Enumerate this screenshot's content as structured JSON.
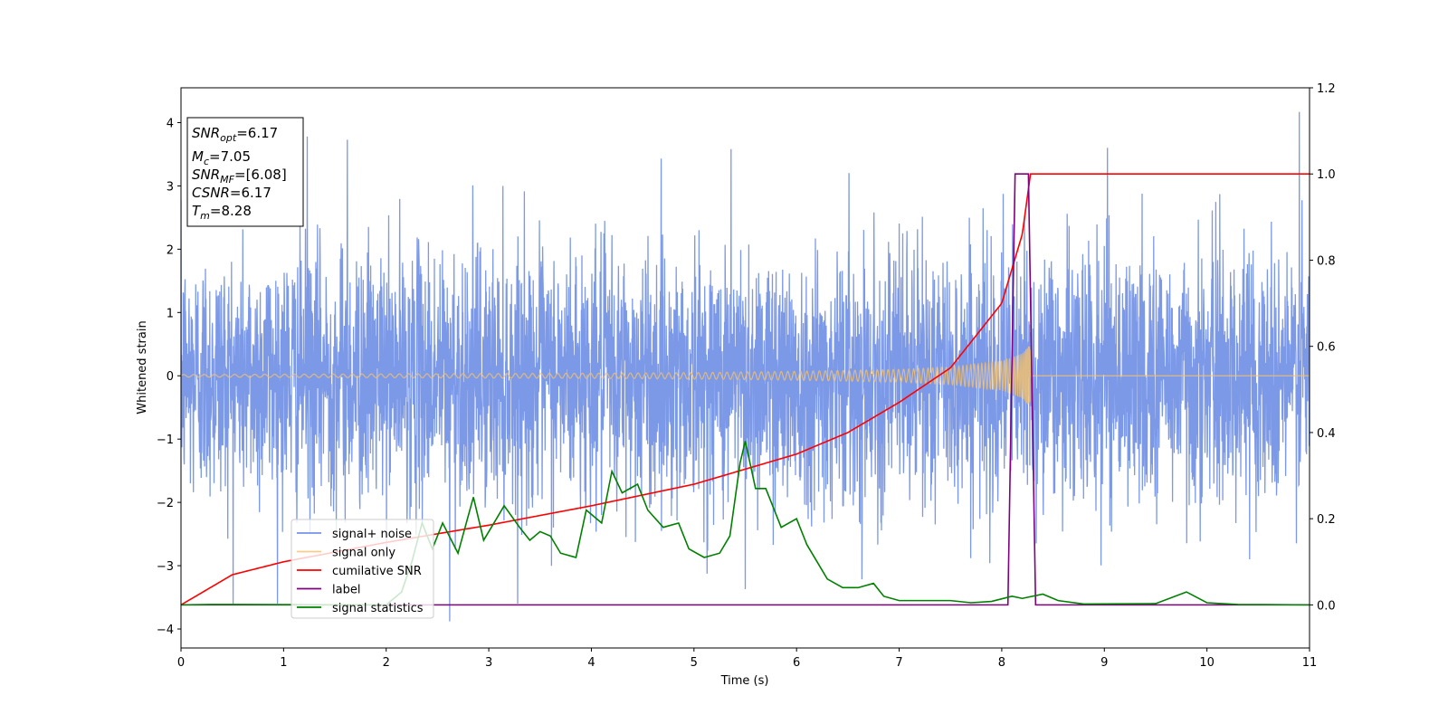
{
  "chart_data": {
    "type": "line",
    "xlabel": "Time (s)",
    "ylabel": "Whitened strain",
    "xlim": [
      0,
      11
    ],
    "ylim_left": [
      -4.3,
      4.55
    ],
    "ylim_right": [
      -0.1,
      1.2
    ],
    "x_ticks": [
      "0",
      "1",
      "2",
      "3",
      "4",
      "5",
      "6",
      "7",
      "8",
      "9",
      "10",
      "11"
    ],
    "y_ticks_left": [
      "−4",
      "−3",
      "−2",
      "−1",
      "0",
      "1",
      "2",
      "3",
      "4"
    ],
    "y_ticks_right": [
      "0.0",
      "0.2",
      "0.4",
      "0.6",
      "0.8",
      "1.0",
      "1.2"
    ],
    "grid": false,
    "legend_position": "lower-left",
    "annotation": {
      "snr_opt": {
        "base": "SNR",
        "sub": "opt",
        "value": "=6.17"
      },
      "mc": {
        "base": "M",
        "sub": "c",
        "value": "=7.05"
      },
      "snr_mf": {
        "base": "SNR",
        "sub": "MF",
        "value": "=[6.08]"
      },
      "csnr": {
        "base": "CSNR",
        "value": "=6.17"
      },
      "tm": {
        "base": "T",
        "sub": "m",
        "value": "=8.28"
      }
    },
    "series": [
      {
        "name": "signal+ noise",
        "color": "#7593e6",
        "axis": "left",
        "description_values": "whitened noise, approx. Gaussian, sigma ~1, spikes to ±3.8, max 4.17 at x=10.9, min -3.88 at x=2.62",
        "sigma": 1.0,
        "notable_points": [
          [
            10.9,
            4.17
          ],
          [
            2.62,
            -3.88
          ],
          [
            1.23,
            3.78
          ],
          [
            1.62,
            3.73
          ],
          [
            5.36,
            3.58
          ],
          [
            9.03,
            3.6
          ],
          [
            5.5,
            -3.37
          ]
        ]
      },
      {
        "name": "signal only",
        "color": "#f5c06b",
        "axis": "left",
        "envelope": [
          [
            0,
            0.02
          ],
          [
            2,
            0.03
          ],
          [
            4,
            0.04
          ],
          [
            5,
            0.05
          ],
          [
            6,
            0.07
          ],
          [
            7,
            0.1
          ],
          [
            7.5,
            0.14
          ],
          [
            8,
            0.23
          ],
          [
            8.2,
            0.35
          ],
          [
            8.28,
            0.5
          ]
        ],
        "end_time": 8.28
      },
      {
        "name": "cumilative SNR",
        "color": "#ff0000",
        "axis": "right",
        "points": [
          [
            0,
            0.0
          ],
          [
            0.5,
            0.07
          ],
          [
            1,
            0.1
          ],
          [
            2,
            0.145
          ],
          [
            3,
            0.185
          ],
          [
            4,
            0.23
          ],
          [
            5,
            0.28
          ],
          [
            6,
            0.35
          ],
          [
            6.5,
            0.4
          ],
          [
            7,
            0.47
          ],
          [
            7.5,
            0.55
          ],
          [
            8,
            0.7
          ],
          [
            8.2,
            0.86
          ],
          [
            8.28,
            1.0
          ],
          [
            11,
            1.0
          ]
        ]
      },
      {
        "name": "label",
        "color": "#800080",
        "axis": "right",
        "points": [
          [
            0,
            0
          ],
          [
            8.06,
            0
          ],
          [
            8.13,
            1
          ],
          [
            8.26,
            1
          ],
          [
            8.33,
            0
          ],
          [
            11,
            0
          ]
        ]
      },
      {
        "name": "signal statistics",
        "color": "#008000",
        "axis": "right",
        "points": [
          [
            0,
            0.0
          ],
          [
            0.3,
            0.001
          ],
          [
            2.0,
            0.0
          ],
          [
            2.15,
            0.03
          ],
          [
            2.25,
            0.1
          ],
          [
            2.35,
            0.19
          ],
          [
            2.45,
            0.13
          ],
          [
            2.55,
            0.19
          ],
          [
            2.7,
            0.12
          ],
          [
            2.85,
            0.25
          ],
          [
            2.95,
            0.15
          ],
          [
            3.05,
            0.19
          ],
          [
            3.15,
            0.23
          ],
          [
            3.3,
            0.18
          ],
          [
            3.4,
            0.15
          ],
          [
            3.5,
            0.17
          ],
          [
            3.6,
            0.16
          ],
          [
            3.7,
            0.12
          ],
          [
            3.85,
            0.11
          ],
          [
            3.95,
            0.22
          ],
          [
            4.1,
            0.19
          ],
          [
            4.2,
            0.31
          ],
          [
            4.3,
            0.26
          ],
          [
            4.45,
            0.28
          ],
          [
            4.55,
            0.22
          ],
          [
            4.7,
            0.18
          ],
          [
            4.85,
            0.19
          ],
          [
            4.95,
            0.13
          ],
          [
            5.1,
            0.11
          ],
          [
            5.25,
            0.12
          ],
          [
            5.35,
            0.16
          ],
          [
            5.45,
            0.33
          ],
          [
            5.5,
            0.38
          ],
          [
            5.6,
            0.27
          ],
          [
            5.7,
            0.27
          ],
          [
            5.85,
            0.18
          ],
          [
            6.0,
            0.2
          ],
          [
            6.1,
            0.14
          ],
          [
            6.3,
            0.06
          ],
          [
            6.45,
            0.04
          ],
          [
            6.6,
            0.04
          ],
          [
            6.75,
            0.05
          ],
          [
            6.85,
            0.02
          ],
          [
            7.0,
            0.01
          ],
          [
            7.5,
            0.01
          ],
          [
            7.7,
            0.005
          ],
          [
            7.9,
            0.008
          ],
          [
            8.1,
            0.02
          ],
          [
            8.2,
            0.015
          ],
          [
            8.4,
            0.025
          ],
          [
            8.55,
            0.01
          ],
          [
            8.8,
            0.002
          ],
          [
            9.5,
            0.003
          ],
          [
            9.8,
            0.03
          ],
          [
            10.0,
            0.005
          ],
          [
            10.3,
            0.001
          ],
          [
            11,
            0.0
          ]
        ]
      }
    ]
  }
}
